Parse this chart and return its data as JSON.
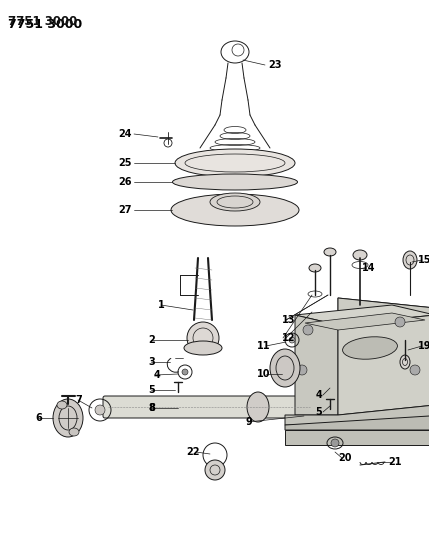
{
  "title": "7751 3000",
  "bg_color": "#ffffff",
  "lc": "#1a1a1a",
  "fig_width": 4.29,
  "fig_height": 5.33,
  "dpi": 100
}
